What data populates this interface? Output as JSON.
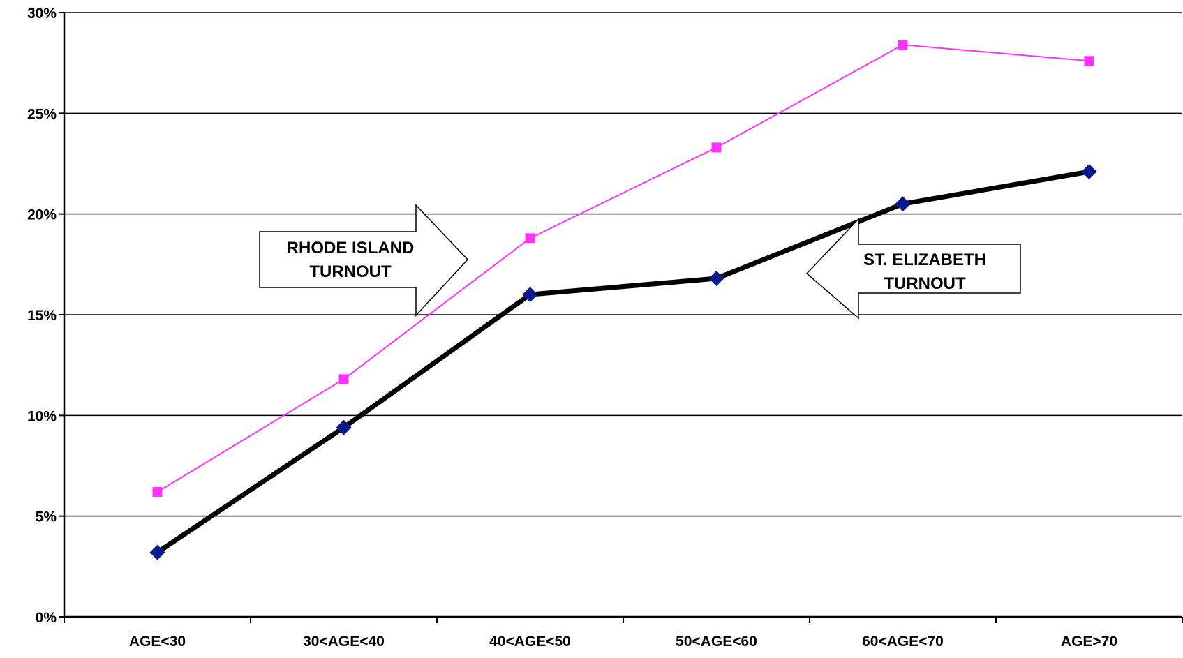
{
  "chart_data": {
    "type": "line",
    "title": "",
    "xlabel": "",
    "ylabel": "",
    "categories": [
      "AGE<30",
      "30<AGE<40",
      "40<AGE<50",
      "50<AGE<60",
      "60<AGE<70",
      "AGE>70"
    ],
    "ylim": [
      0,
      30
    ],
    "y_ticks": [
      {
        "value": 0,
        "label": "0%"
      },
      {
        "value": 5,
        "label": "5%"
      },
      {
        "value": 10,
        "label": "10%"
      },
      {
        "value": 15,
        "label": "15%"
      },
      {
        "value": 20,
        "label": "20%"
      },
      {
        "value": 25,
        "label": "25%"
      },
      {
        "value": 30,
        "label": "30%"
      }
    ],
    "grid": true,
    "legend": "none",
    "series": [
      {
        "key": "rhode_island",
        "values": [
          6.2,
          11.8,
          18.8,
          23.3,
          28.4,
          27.6
        ],
        "color": "#ff33ff",
        "marker": "square"
      },
      {
        "key": "st_elizabeth",
        "values": [
          3.2,
          9.4,
          16.0,
          16.8,
          20.5,
          22.1
        ],
        "color": "#000000",
        "marker_color": "#0a1a8c",
        "marker": "diamond"
      }
    ],
    "annotations": [
      {
        "key": "rhode_island",
        "lines": [
          "RHODE ISLAND",
          "TURNOUT"
        ],
        "direction": "right"
      },
      {
        "key": "st_elizabeth",
        "lines": [
          "ST. ELIZABETH",
          "TURNOUT"
        ],
        "direction": "left"
      }
    ]
  }
}
